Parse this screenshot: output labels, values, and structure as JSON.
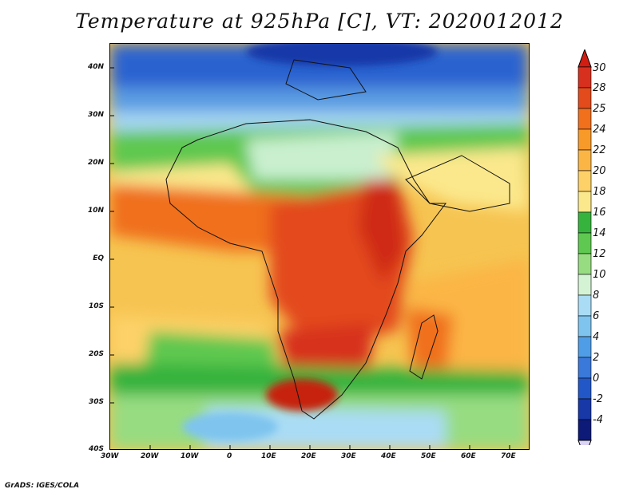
{
  "title": "Temperature at 925hPa [C], VT: 2020012012",
  "credit": "GrADS: IGES/COLA",
  "map": {
    "lon_labels": [
      "30W",
      "20W",
      "10W",
      "0",
      "10E",
      "20E",
      "30E",
      "40E",
      "50E",
      "60E",
      "70E"
    ],
    "lat_labels": [
      "40N",
      "30N",
      "20N",
      "10N",
      "EQ",
      "10S",
      "20S",
      "30S",
      "40S"
    ]
  },
  "colorbar": {
    "labels": [
      "30",
      "28",
      "25",
      "24",
      "22",
      "20",
      "18",
      "16",
      "14",
      "12",
      "10",
      "8",
      "6",
      "4",
      "2",
      "0",
      "-2",
      "-4"
    ],
    "colors": [
      "#d7301f",
      "#e34a1c",
      "#f0701c",
      "#f89a2a",
      "#fbb545",
      "#fdd168",
      "#fbe88c",
      "#35b33c",
      "#5ec850",
      "#97dc81",
      "#d4f3d4",
      "#aadcf5",
      "#7ec4ee",
      "#4f9de6",
      "#3a78d9",
      "#2257c7",
      "#1838a8",
      "#0d1a78"
    ],
    "top_color": "#d11d12",
    "bottom_color": "#dcd4f6"
  }
}
